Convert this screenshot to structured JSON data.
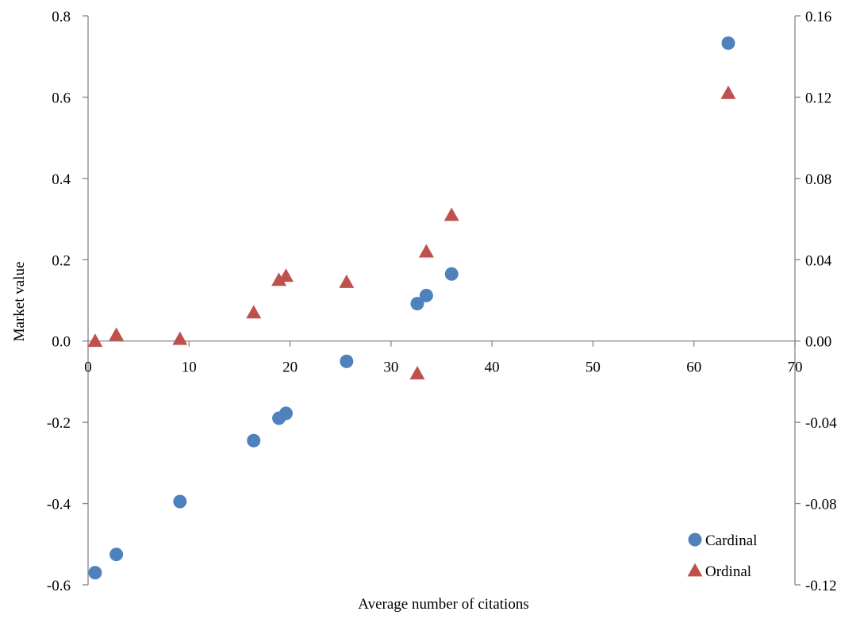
{
  "chart_data": {
    "type": "scatter",
    "xlabel": "Average number of citations",
    "ylabel": "Market value",
    "y2label": "",
    "xlim": [
      0,
      70
    ],
    "ylim": [
      -0.6,
      0.8
    ],
    "y2lim": [
      -0.12,
      0.16
    ],
    "x_ticks": [
      "0",
      "10",
      "20",
      "30",
      "40",
      "50",
      "60",
      "70"
    ],
    "y_ticks": [
      "0.8",
      "0.6",
      "0.4",
      "0.2",
      "0.0",
      "-0.2",
      "-0.4",
      "-0.6"
    ],
    "y2_ticks": [
      "0.16",
      "0.12",
      "0.08",
      "0.04",
      "0.00",
      "-0.04",
      "-0.08",
      "-0.12"
    ],
    "grid": false,
    "legend_position": "bottom-right",
    "series": [
      {
        "name": "Cardinal",
        "axis": "left",
        "marker": "circle",
        "color": "#4F81BD",
        "points": [
          {
            "x": 0.7,
            "y": -0.57
          },
          {
            "x": 2.8,
            "y": -0.525
          },
          {
            "x": 9.1,
            "y": -0.395
          },
          {
            "x": 16.4,
            "y": -0.245
          },
          {
            "x": 18.9,
            "y": -0.19
          },
          {
            "x": 19.6,
            "y": -0.178
          },
          {
            "x": 25.6,
            "y": -0.05
          },
          {
            "x": 32.6,
            "y": 0.092
          },
          {
            "x": 33.5,
            "y": 0.112
          },
          {
            "x": 36.0,
            "y": 0.165
          },
          {
            "x": 63.4,
            "y": 0.733
          }
        ]
      },
      {
        "name": "Ordinal",
        "axis": "right",
        "marker": "triangle",
        "color": "#C0504D",
        "points": [
          {
            "x": 0.7,
            "y": 0.0
          },
          {
            "x": 2.8,
            "y": 0.003
          },
          {
            "x": 9.1,
            "y": 0.001
          },
          {
            "x": 16.4,
            "y": 0.014
          },
          {
            "x": 18.9,
            "y": 0.03
          },
          {
            "x": 19.6,
            "y": 0.032
          },
          {
            "x": 25.6,
            "y": 0.029
          },
          {
            "x": 32.6,
            "y": -0.016
          },
          {
            "x": 33.5,
            "y": 0.044
          },
          {
            "x": 36.0,
            "y": 0.062
          },
          {
            "x": 63.4,
            "y": 0.122
          }
        ]
      }
    ]
  }
}
